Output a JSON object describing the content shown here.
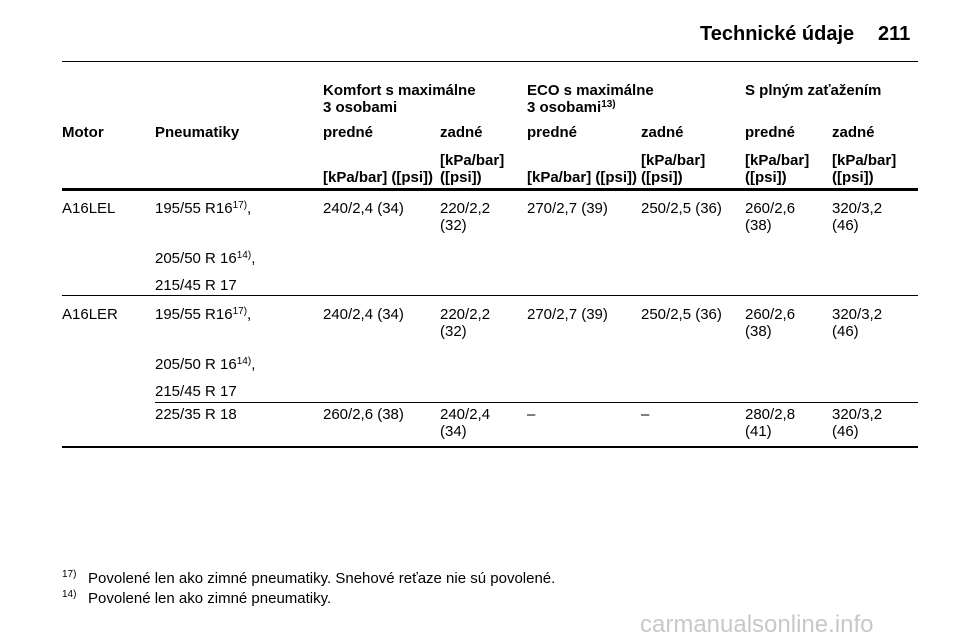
{
  "header": {
    "title": "Technické údaje",
    "page": "211"
  },
  "table": {
    "group_headers": [
      {
        "lines": [
          "Komfort s maximálne",
          "3 osobami"
        ]
      },
      {
        "lines": [
          "ECO s maximálne",
          "3 osobami"
        ],
        "sup": "13)"
      },
      {
        "lines": [
          "S plným zaťažením"
        ]
      }
    ],
    "columns": [
      "Motor",
      "Pneumatiky",
      "predné",
      "zadné",
      "predné",
      "zadné",
      "predné",
      "zadné"
    ],
    "units": [
      [
        "[kPa/bar] ([psi])"
      ],
      [
        "[kPa/bar]",
        "([psi])"
      ],
      [
        "[kPa/bar] ([psi])"
      ],
      [
        "[kPa/bar]",
        "([psi])"
      ],
      [
        "[kPa/bar]",
        "([psi])"
      ],
      [
        "[kPa/bar]",
        "([psi])"
      ]
    ],
    "rows": [
      {
        "motor": "A16LEL",
        "tyres": [
          {
            "text": "195/55 R16",
            "sup": "17)",
            "suffix": ","
          },
          {
            "text": "205/50 R 16",
            "sup": "14)",
            "suffix": ","
          },
          {
            "text": "215/45 R 17"
          }
        ],
        "values": [
          [
            "240/2,4 (34)"
          ],
          [
            "220/2,2",
            "(32)"
          ],
          [
            "270/2,7 (39)"
          ],
          [
            "250/2,5 (36)"
          ],
          [
            "260/2,6",
            "(38)"
          ],
          [
            "320/3,2",
            "(46)"
          ]
        ]
      },
      {
        "motor": "A16LER",
        "tyres": [
          {
            "text": "195/55 R16",
            "sup": "17)",
            "suffix": ","
          },
          {
            "text": "205/50 R 16",
            "sup": "14)",
            "suffix": ","
          },
          {
            "text": "215/45 R 17"
          }
        ],
        "values": [
          [
            "240/2,4 (34)"
          ],
          [
            "220/2,2",
            "(32)"
          ],
          [
            "270/2,7 (39)"
          ],
          [
            "250/2,5 (36)"
          ],
          [
            "260/2,6",
            "(38)"
          ],
          [
            "320/3,2",
            "(46)"
          ]
        ]
      },
      {
        "tyres": [
          {
            "text": "225/35 R 18"
          }
        ],
        "values": [
          [
            "260/2,6 (38)"
          ],
          [
            "240/2,4",
            "(34)"
          ],
          [
            "–"
          ],
          [
            "–"
          ],
          [
            "280/2,8",
            "(41)"
          ],
          [
            "320/3,2",
            "(46)"
          ]
        ]
      }
    ]
  },
  "footnotes": [
    {
      "mark": "17)",
      "text": "Povolené len ako zimné pneumatiky. Snehové reťaze nie sú povolené."
    },
    {
      "mark": "14)",
      "text": "Povolené len ako zimné pneumatiky."
    }
  ],
  "watermark": "carmanualsonline.info"
}
